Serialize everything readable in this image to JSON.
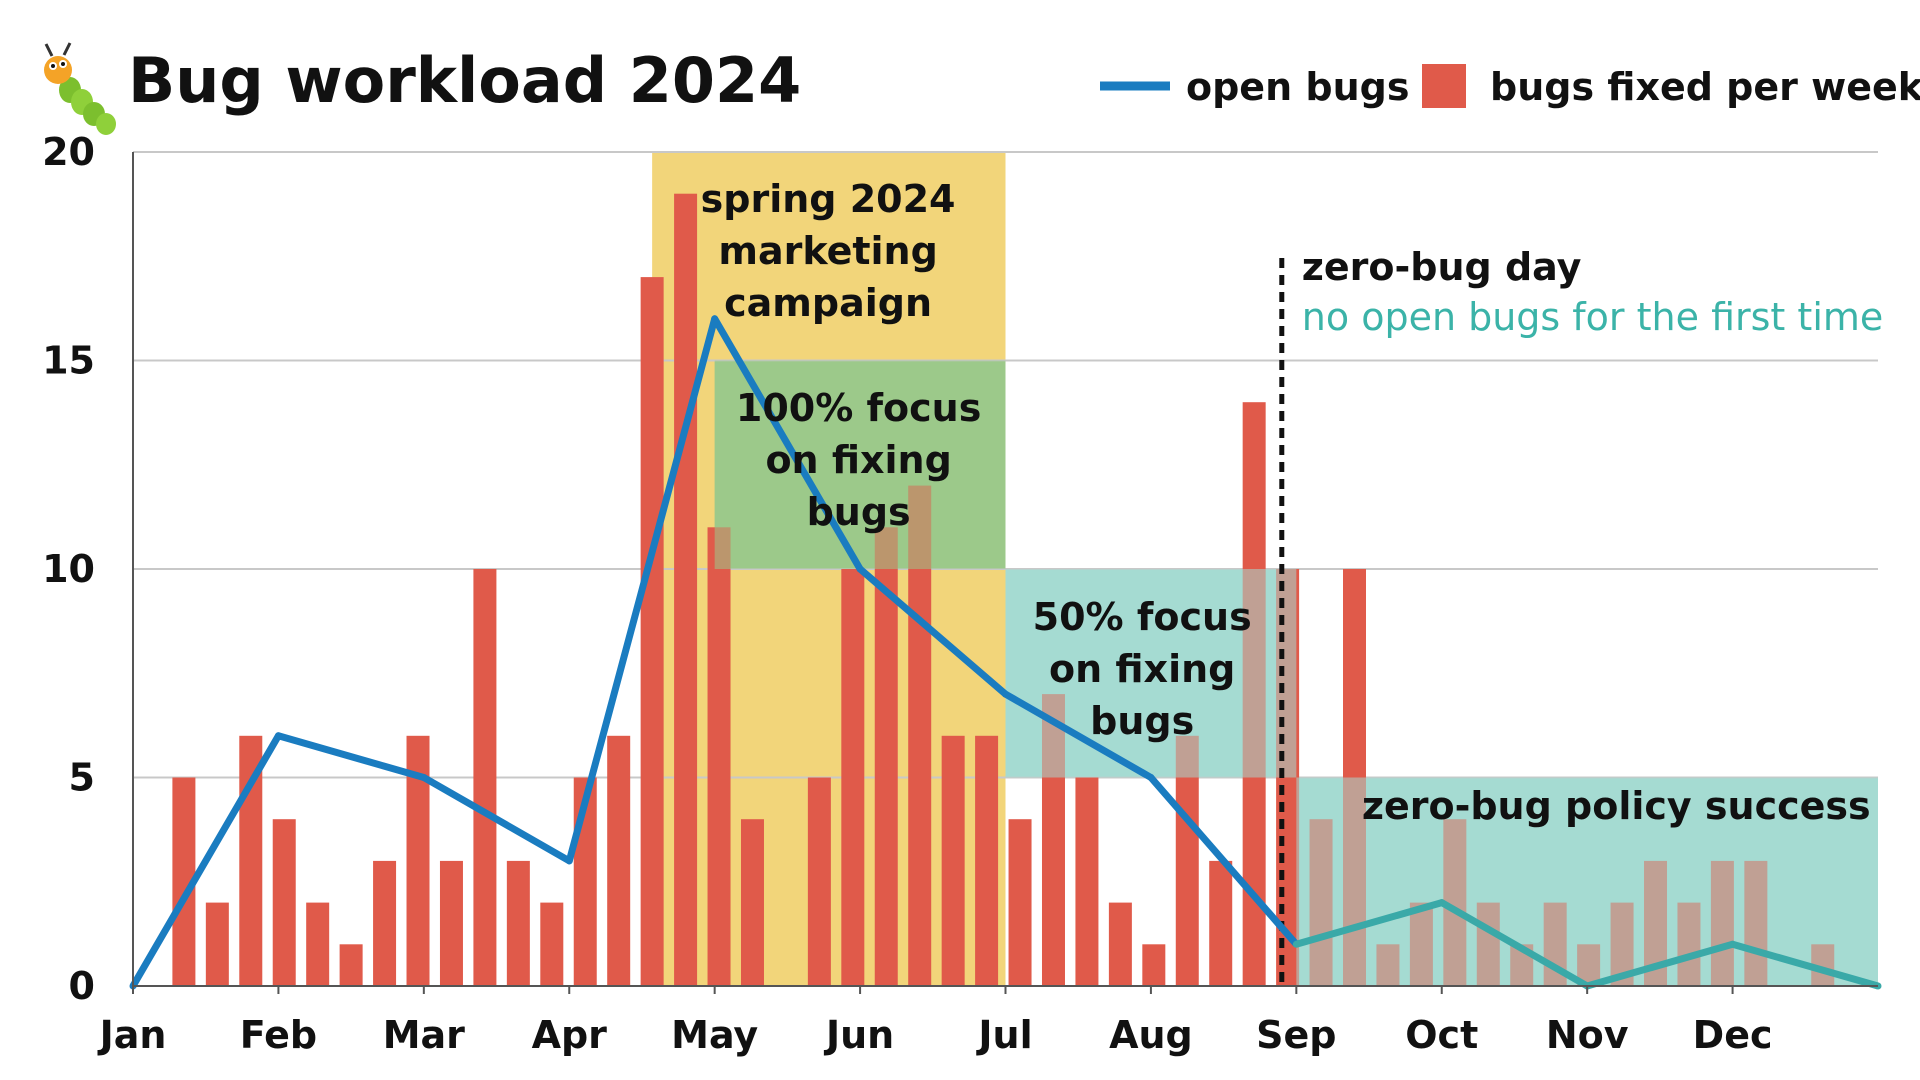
{
  "title": "Bug workload 2024",
  "title_icon": "caterpillar-bug-icon",
  "legend": {
    "line_label": "open bugs",
    "bar_label": "bugs fixed per week"
  },
  "colors": {
    "line": "#1a7cc0",
    "line_after": "#3aa9a8",
    "bars": "#e05a4a",
    "band_campaign": "#f2d57a",
    "band_focus100": "#9cc98b",
    "band_focus50": "#a5dbd2",
    "band_policy": "#a5dbd2",
    "marker": "#111111",
    "marker_sub": "#3bb3a8"
  },
  "annotations": {
    "campaign": [
      "spring 2024",
      "marketing",
      "campaign"
    ],
    "focus100": [
      "100% focus",
      "on fixing",
      "bugs"
    ],
    "focus50": [
      "50% focus",
      "on fixing",
      "bugs"
    ],
    "policy": "zero-bug policy success",
    "zero_day_title": "zero-bug day",
    "zero_day_sub": "no open bugs for the first time"
  },
  "chart_data": {
    "type": "bar+line",
    "title": "Bug workload 2024",
    "xlabel": "",
    "ylabel": "",
    "ylim": [
      0,
      20
    ],
    "yticks": [
      0,
      5,
      10,
      15,
      20
    ],
    "xticks": [
      "Jan",
      "Feb",
      "Mar",
      "Apr",
      "May",
      "Jun",
      "Jul",
      "Aug",
      "Sep",
      "Oct",
      "Nov",
      "Dec"
    ],
    "xlim_months": [
      0,
      12
    ],
    "grid": true,
    "legend_position": "top-right",
    "series": [
      {
        "name": "bugs fixed per week",
        "kind": "bar",
        "x_month": [
          0.35,
          0.58,
          0.81,
          1.04,
          1.27,
          1.5,
          1.73,
          1.96,
          2.19,
          2.42,
          2.65,
          2.88,
          3.11,
          3.34,
          3.57,
          3.8,
          4.03,
          4.26,
          4.72,
          4.95,
          5.18,
          5.41,
          5.64,
          5.87,
          6.1,
          6.33,
          6.56,
          6.79,
          7.02,
          7.25,
          7.48,
          7.71,
          7.94,
          8.17,
          8.4,
          8.63,
          8.86,
          9.09,
          9.32,
          9.55,
          9.78,
          10.01,
          10.24,
          10.47,
          10.7,
          10.93,
          11.16,
          11.39,
          11.62
        ],
        "values": [
          5,
          2,
          6,
          4,
          2,
          1,
          3,
          6,
          3,
          10,
          3,
          2,
          5,
          6,
          17,
          19,
          11,
          4,
          5,
          10,
          11,
          12,
          6,
          6,
          4,
          7,
          5,
          2,
          1,
          6,
          3,
          14,
          10,
          4,
          10,
          1,
          2,
          4,
          2,
          1,
          2,
          1,
          2,
          3,
          2,
          3,
          3,
          0,
          1
        ]
      },
      {
        "name": "open bugs",
        "kind": "line",
        "x_month": [
          0,
          1,
          2,
          3,
          4,
          5,
          6,
          7,
          8,
          9,
          10,
          11,
          12
        ],
        "values": [
          0,
          6,
          5,
          3,
          16,
          10,
          7,
          5,
          1,
          2,
          0,
          1,
          0
        ]
      }
    ],
    "bands": [
      {
        "name": "spring 2024 marketing campaign",
        "x_start_month": 3.57,
        "x_end_month": 6.0,
        "y_start": 0,
        "y_end": 20
      },
      {
        "name": "100% focus on fixing bugs",
        "x_start_month": 4.0,
        "x_end_month": 6.0,
        "y_start": 10,
        "y_end": 15
      },
      {
        "name": "50% focus on fixing bugs",
        "x_start_month": 6.0,
        "x_end_month": 8.0,
        "y_start": 5,
        "y_end": 10
      },
      {
        "name": "zero-bug policy success",
        "x_start_month": 8.0,
        "x_end_month": 12.0,
        "y_start": 0,
        "y_end": 5
      }
    ],
    "markers": [
      {
        "name": "zero-bug day",
        "x_month": 7.9
      }
    ]
  }
}
